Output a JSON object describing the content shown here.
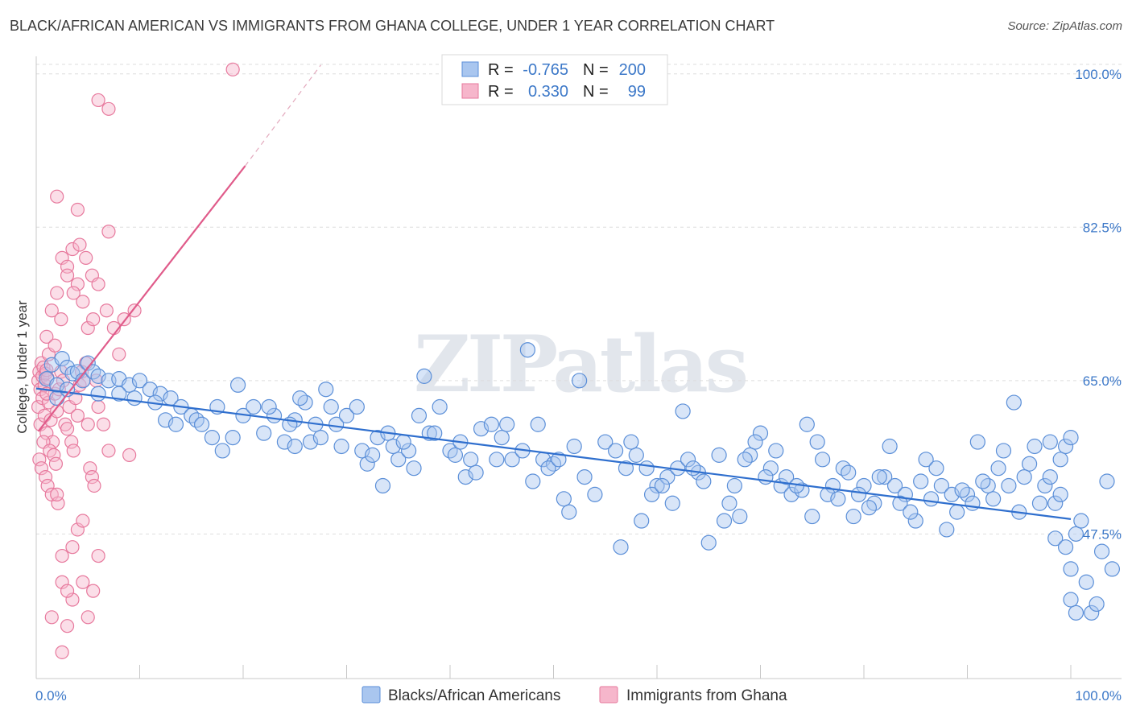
{
  "header": {
    "title": "BLACK/AFRICAN AMERICAN VS IMMIGRANTS FROM GHANA COLLEGE, UNDER 1 YEAR CORRELATION CHART",
    "source": "Source: ZipAtlas.com"
  },
  "watermark": "ZIPatlas",
  "colors": {
    "blue_fill": "#a9c6ef",
    "blue_stroke": "#5b8fd8",
    "blue_line": "#2f6fce",
    "pink_fill": "#f6b6cb",
    "pink_stroke": "#e7799d",
    "pink_line": "#e05b8a",
    "grid": "#dddddd",
    "tick_label": "#3c78c8"
  },
  "legend": {
    "row1": {
      "r_label": "R =",
      "r_value": "-0.765",
      "n_label": "N =",
      "n_value": "200"
    },
    "row2": {
      "r_label": "R =",
      "r_value": "0.330",
      "n_label": "N =",
      "n_value": "99"
    }
  },
  "chart_data": {
    "type": "scatter",
    "title": "BLACK/AFRICAN AMERICAN VS IMMIGRANTS FROM GHANA COLLEGE, UNDER 1 YEAR CORRELATION CHART",
    "xlabel": "",
    "ylabel": "College, Under 1 year",
    "xlim": [
      0,
      100
    ],
    "ylim": [
      31,
      102
    ],
    "x_tick_labels": [
      "0.0%",
      "100.0%"
    ],
    "y_ticks": [
      47.5,
      65.0,
      82.5,
      100.0
    ],
    "y_tick_labels": [
      "47.5%",
      "65.0%",
      "82.5%",
      "100.0%"
    ],
    "grid": true,
    "legend_position": "top-center",
    "series": [
      {
        "name": "Blacks/African Americans",
        "color": "#a9c6ef",
        "r": -0.765,
        "n": 200,
        "trend": {
          "x": [
            0,
            100
          ],
          "y": [
            64.1,
            49.2
          ]
        },
        "points": [
          [
            1,
            65.2
          ],
          [
            1.5,
            66.8
          ],
          [
            2,
            64.5
          ],
          [
            2.5,
            67.5
          ],
          [
            3,
            66.5
          ],
          [
            3.5,
            65.8
          ],
          [
            4,
            66
          ],
          [
            4.5,
            65
          ],
          [
            5,
            67
          ],
          [
            5.5,
            66
          ],
          [
            6,
            65.5
          ],
          [
            7,
            65
          ],
          [
            8,
            65.2
          ],
          [
            9,
            64.5
          ],
          [
            10,
            65
          ],
          [
            11,
            64
          ],
          [
            12,
            63.5
          ],
          [
            13,
            63
          ],
          [
            14,
            62
          ],
          [
            15,
            61
          ],
          [
            2,
            63
          ],
          [
            3,
            64
          ],
          [
            6,
            63.5
          ],
          [
            8,
            63.5
          ],
          [
            9.5,
            63
          ],
          [
            11.5,
            62.5
          ],
          [
            12.5,
            60.5
          ],
          [
            13.5,
            60
          ],
          [
            15.5,
            60.5
          ],
          [
            16,
            60
          ],
          [
            17,
            58.5
          ],
          [
            18,
            57
          ],
          [
            19,
            58.5
          ],
          [
            20,
            61
          ],
          [
            21,
            62
          ],
          [
            22,
            59
          ],
          [
            23,
            61
          ],
          [
            24,
            58
          ],
          [
            25,
            60.5
          ],
          [
            26,
            62.5
          ],
          [
            17.5,
            62
          ],
          [
            19.5,
            64.5
          ],
          [
            22.5,
            62
          ],
          [
            24.5,
            60
          ],
          [
            25.5,
            63
          ],
          [
            27,
            60
          ],
          [
            28,
            64
          ],
          [
            29,
            60
          ],
          [
            30,
            61
          ],
          [
            31,
            62
          ],
          [
            25,
            57.5
          ],
          [
            26.5,
            58
          ],
          [
            27.5,
            58.5
          ],
          [
            28.5,
            62
          ],
          [
            29.5,
            57.5
          ],
          [
            31.5,
            57
          ],
          [
            32,
            55.5
          ],
          [
            32.5,
            56.5
          ],
          [
            33,
            58.5
          ],
          [
            34,
            59
          ],
          [
            35,
            56
          ],
          [
            36,
            57
          ],
          [
            37,
            61
          ],
          [
            38,
            59
          ],
          [
            39,
            62
          ],
          [
            40,
            57
          ],
          [
            41,
            58
          ],
          [
            42,
            56
          ],
          [
            33.5,
            53
          ],
          [
            34.5,
            57.5
          ],
          [
            35.5,
            58
          ],
          [
            36.5,
            55
          ],
          [
            37.5,
            65.5
          ],
          [
            38.5,
            59
          ],
          [
            40.5,
            56.5
          ],
          [
            41.5,
            54
          ],
          [
            43,
            59.5
          ],
          [
            44,
            60
          ],
          [
            45,
            58.5
          ],
          [
            46,
            56
          ],
          [
            47,
            57
          ],
          [
            48,
            53.5
          ],
          [
            49,
            56
          ],
          [
            50,
            55.5
          ],
          [
            51,
            51.5
          ],
          [
            52,
            57.5
          ],
          [
            42.5,
            54.5
          ],
          [
            44.5,
            56
          ],
          [
            45.5,
            60
          ],
          [
            47.5,
            68.5
          ],
          [
            48.5,
            60
          ],
          [
            49.5,
            55
          ],
          [
            50.5,
            56
          ],
          [
            51.5,
            50
          ],
          [
            53,
            54
          ],
          [
            54,
            52
          ],
          [
            55,
            58
          ],
          [
            56,
            57
          ],
          [
            57,
            55
          ],
          [
            58,
            56.5
          ],
          [
            59,
            55
          ],
          [
            60,
            53
          ],
          [
            61,
            54
          ],
          [
            62,
            55
          ],
          [
            52.5,
            65
          ],
          [
            56.5,
            46
          ],
          [
            57.5,
            58
          ],
          [
            58.5,
            49
          ],
          [
            59.5,
            52
          ],
          [
            60.5,
            53
          ],
          [
            61.5,
            51
          ],
          [
            62.5,
            61.5
          ],
          [
            63,
            56
          ],
          [
            64,
            54.5
          ],
          [
            65,
            46.5
          ],
          [
            66,
            56.5
          ],
          [
            67,
            51
          ],
          [
            68,
            49.5
          ],
          [
            69,
            56.5
          ],
          [
            70,
            59
          ],
          [
            71,
            55
          ],
          [
            72,
            53
          ],
          [
            63.5,
            55
          ],
          [
            64.5,
            53.5
          ],
          [
            66.5,
            49
          ],
          [
            67.5,
            53
          ],
          [
            68.5,
            56
          ],
          [
            69.5,
            58
          ],
          [
            70.5,
            54
          ],
          [
            71.5,
            57
          ],
          [
            73,
            52
          ],
          [
            74,
            52.5
          ],
          [
            75,
            49.5
          ],
          [
            76,
            56
          ],
          [
            77,
            53
          ],
          [
            78,
            55
          ],
          [
            79,
            49.5
          ],
          [
            80,
            53
          ],
          [
            81,
            51
          ],
          [
            82,
            54
          ],
          [
            72.5,
            54
          ],
          [
            73.5,
            53
          ],
          [
            74.5,
            60
          ],
          [
            75.5,
            58
          ],
          [
            76.5,
            52
          ],
          [
            77.5,
            51.5
          ],
          [
            78.5,
            54.5
          ],
          [
            79.5,
            52
          ],
          [
            83,
            53
          ],
          [
            84,
            52
          ],
          [
            85,
            49
          ],
          [
            86,
            56
          ],
          [
            87,
            55
          ],
          [
            88,
            48
          ],
          [
            89,
            50
          ],
          [
            90,
            52
          ],
          [
            91,
            58
          ],
          [
            92,
            53
          ],
          [
            80.5,
            50.5
          ],
          [
            81.5,
            54
          ],
          [
            82.5,
            57.5
          ],
          [
            83.5,
            51
          ],
          [
            84.5,
            50
          ],
          [
            85.5,
            53.5
          ],
          [
            86.5,
            51.5
          ],
          [
            87.5,
            53
          ],
          [
            93,
            55
          ],
          [
            94,
            53
          ],
          [
            95,
            50
          ],
          [
            96,
            55.5
          ],
          [
            97,
            51
          ],
          [
            98,
            58
          ],
          [
            99,
            56
          ],
          [
            100,
            43.5
          ],
          [
            94.5,
            62.5
          ],
          [
            96.5,
            57.5
          ],
          [
            88.5,
            52
          ],
          [
            89.5,
            52.5
          ],
          [
            90.5,
            51
          ],
          [
            91.5,
            53.5
          ],
          [
            92.5,
            51.5
          ],
          [
            93.5,
            57
          ],
          [
            95.5,
            54
          ],
          [
            97.5,
            53
          ],
          [
            98.5,
            51
          ],
          [
            99.5,
            57.5
          ],
          [
            98,
            54
          ],
          [
            99,
            52
          ],
          [
            100,
            58.5
          ],
          [
            98.5,
            47
          ],
          [
            99.5,
            46
          ],
          [
            100.5,
            47.5
          ],
          [
            101,
            49
          ],
          [
            100,
            40
          ],
          [
            101.5,
            42
          ],
          [
            100.5,
            38.5
          ],
          [
            102,
            38.5
          ],
          [
            102.5,
            39.5
          ],
          [
            103,
            45.5
          ],
          [
            104,
            43.5
          ],
          [
            103.5,
            53.5
          ]
        ]
      },
      {
        "name": "Immigrants from Ghana",
        "color": "#f6b6cb",
        "r": 0.33,
        "n": 99,
        "trend": {
          "x": [
            0.2,
            20.2
          ],
          "y": [
            59.2,
            89.5
          ]
        },
        "trend_extension": {
          "x": [
            20.2,
            27.5
          ],
          "y": [
            89.5,
            101
          ]
        },
        "points": [
          [
            0.2,
            65
          ],
          [
            0.3,
            66
          ],
          [
            0.4,
            64
          ],
          [
            0.5,
            67
          ],
          [
            0.6,
            65.5
          ],
          [
            0.7,
            66.5
          ],
          [
            0.8,
            64.5
          ],
          [
            0.9,
            65.8
          ],
          [
            1,
            66.2
          ],
          [
            1.1,
            65.3
          ],
          [
            0.2,
            62
          ],
          [
            0.4,
            60
          ],
          [
            0.6,
            63
          ],
          [
            0.8,
            61
          ],
          [
            1,
            59
          ],
          [
            1.2,
            62.5
          ],
          [
            1.4,
            60.5
          ],
          [
            1.6,
            58
          ],
          [
            1.8,
            63.5
          ],
          [
            2,
            61.5
          ],
          [
            0.3,
            56
          ],
          [
            0.5,
            55
          ],
          [
            0.7,
            58
          ],
          [
            0.9,
            54
          ],
          [
            1.1,
            53
          ],
          [
            1.3,
            57
          ],
          [
            1.5,
            52
          ],
          [
            1.7,
            56.5
          ],
          [
            1.9,
            55.5
          ],
          [
            2.1,
            51
          ],
          [
            2.2,
            64
          ],
          [
            2.4,
            66
          ],
          [
            2.6,
            65
          ],
          [
            2.8,
            60
          ],
          [
            3,
            59.5
          ],
          [
            3.2,
            62
          ],
          [
            3.4,
            58
          ],
          [
            3.6,
            57
          ],
          [
            3.8,
            63
          ],
          [
            4,
            61
          ],
          [
            4.2,
            64.5
          ],
          [
            4.4,
            66
          ],
          [
            4.6,
            65
          ],
          [
            4.8,
            67
          ],
          [
            5,
            60
          ],
          [
            5.2,
            55
          ],
          [
            5.4,
            54
          ],
          [
            5.6,
            53
          ],
          [
            5.8,
            65
          ],
          [
            6,
            62
          ],
          [
            1,
            70
          ],
          [
            1.5,
            73
          ],
          [
            2,
            75
          ],
          [
            2.5,
            79
          ],
          [
            3,
            78
          ],
          [
            3.5,
            80
          ],
          [
            4,
            76
          ],
          [
            4.5,
            74
          ],
          [
            5,
            71
          ],
          [
            5.5,
            72
          ],
          [
            1.2,
            68
          ],
          [
            1.8,
            69
          ],
          [
            2.4,
            72
          ],
          [
            3,
            77
          ],
          [
            3.6,
            75
          ],
          [
            4.2,
            80.5
          ],
          [
            4.8,
            79
          ],
          [
            5.4,
            77
          ],
          [
            6,
            76
          ],
          [
            6.8,
            73
          ],
          [
            2,
            86
          ],
          [
            4,
            84.5
          ],
          [
            7,
            82
          ],
          [
            3.5,
            40
          ],
          [
            4.5,
            42
          ],
          [
            5,
            38
          ],
          [
            3,
            37
          ],
          [
            2.5,
            45
          ],
          [
            4,
            48
          ],
          [
            6,
            45
          ],
          [
            2.5,
            42
          ],
          [
            3,
            41
          ],
          [
            2,
            52
          ],
          [
            6.5,
            60
          ],
          [
            7,
            57
          ],
          [
            9,
            56.5
          ],
          [
            8,
            68
          ],
          [
            8.5,
            72
          ],
          [
            7.5,
            71
          ],
          [
            9.5,
            73
          ],
          [
            6,
            97
          ],
          [
            7,
            96
          ],
          [
            19,
            100.5
          ],
          [
            1.5,
            38
          ],
          [
            2.5,
            34
          ],
          [
            5.5,
            41
          ],
          [
            4.5,
            49
          ],
          [
            3.5,
            46
          ],
          [
            1,
            63.5
          ]
        ]
      }
    ]
  },
  "bottom_legend": {
    "blue_label": "Blacks/African Americans",
    "pink_label": "Immigrants from Ghana"
  }
}
